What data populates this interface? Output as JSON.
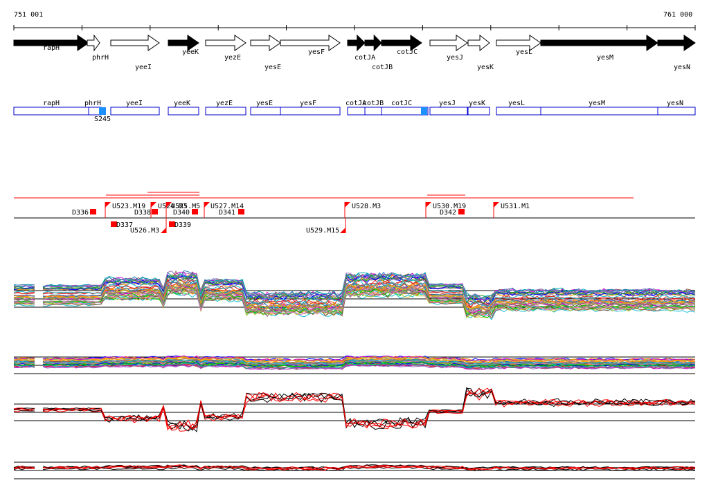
{
  "coords": {
    "start": "751 001",
    "end": "761 000"
  },
  "genes": [
    {
      "name": "rapH",
      "strand": "+",
      "filled": true
    },
    {
      "name": "phrH",
      "strand": "+",
      "filled": false
    },
    {
      "name": "yeeI",
      "strand": "+",
      "filled": false
    },
    {
      "name": "yeeK",
      "strand": "+",
      "filled": true
    },
    {
      "name": "yezE",
      "strand": "+",
      "filled": false
    },
    {
      "name": "yesE",
      "strand": "+",
      "filled": false
    },
    {
      "name": "yesF",
      "strand": "+",
      "filled": false
    },
    {
      "name": "cotJA",
      "strand": "+",
      "filled": true
    },
    {
      "name": "cotJB",
      "strand": "+",
      "filled": true
    },
    {
      "name": "cotJC",
      "strand": "+",
      "filled": true
    },
    {
      "name": "yesJ",
      "strand": "+",
      "filled": false
    },
    {
      "name": "yesK",
      "strand": "+",
      "filled": false
    },
    {
      "name": "yesL",
      "strand": "+",
      "filled": false
    },
    {
      "name": "yesM",
      "strand": "+",
      "filled": true
    },
    {
      "name": "yesN",
      "strand": "+",
      "filled": true
    }
  ],
  "boxes": [
    "rapH",
    "phrH",
    "yeeI",
    "yeeK",
    "yezE",
    "yesE",
    "yesF",
    "cotJA",
    "cotJB",
    "cotJC",
    "yesJ",
    "yesK",
    "yesL",
    "yesM",
    "yesN"
  ],
  "box_labels": [
    "rapH",
    "phrH",
    "yeeI",
    "yeeK",
    "yezE",
    "yesE",
    "yesF",
    "cotJA",
    "cotJB",
    "cotJC",
    "yesJ",
    "yesK",
    "yesL",
    "yesM",
    "yesN"
  ],
  "marker": "S245",
  "features_up": [
    "U523.M19",
    "U524.M3",
    "U525.M5",
    "U527.M14",
    "U528.M3",
    "U530.M19",
    "U531.M1"
  ],
  "features_down": [
    "U526.M3",
    "U529.M15"
  ],
  "downstream": [
    "D336",
    "D337",
    "D338",
    "D339",
    "D340",
    "D341",
    "D342"
  ],
  "colors": {
    "filled_gene": "#000000",
    "box_border": "#0000cc",
    "box_accent": "#1e90ff",
    "feature": "#ff0000",
    "trace_highlight": "#ff0000"
  }
}
